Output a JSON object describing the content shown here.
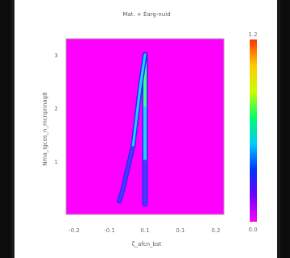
{
  "chart_data": {
    "type": "heatmap",
    "title": "Mat. + Éarg-nuid",
    "xlabel": "ζ_afcn_bst",
    "ylabel": "Nma_Igcos_n_mcnpnnag8",
    "xlim": [
      -0.2,
      0.2
    ],
    "ylim": [
      0,
      3.3
    ],
    "x_ticks": [
      "-0.2",
      "-0.1",
      "0.1",
      "0.1",
      "0.2"
    ],
    "y_ticks": [
      "3",
      "2",
      "1"
    ],
    "colorbar": {
      "min_label": "0.0",
      "max_label": "1.2",
      "colors": [
        "#ff00ff",
        "#6a00ff",
        "#0033ff",
        "#00ccff",
        "#00ff66",
        "#c8ff00",
        "#ffcc00",
        "#ff3300"
      ]
    },
    "background_color": "#ff00ff",
    "traces": [
      {
        "description": "vertical ridge",
        "x": [
          0.0,
          0.0,
          0.0,
          0.0
        ],
        "y": [
          3.0,
          2.0,
          1.0,
          0.2
        ],
        "values": [
          0.55,
          0.4,
          0.25,
          0.15
        ]
      },
      {
        "description": "curved branch",
        "x": [
          -0.065,
          -0.055,
          -0.03,
          -0.012,
          0.0
        ],
        "y": [
          0.25,
          0.5,
          1.3,
          2.4,
          3.0
        ],
        "values": [
          0.18,
          0.2,
          0.22,
          0.25,
          0.3
        ]
      }
    ]
  }
}
